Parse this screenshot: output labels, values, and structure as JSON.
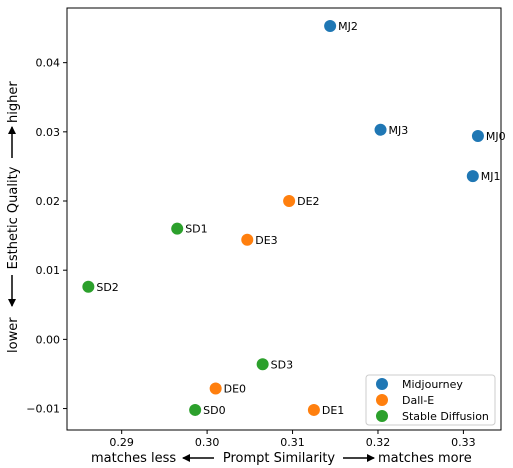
{
  "chart_data": {
    "type": "scatter",
    "xlabel": {
      "left": "matches less",
      "center": "Prompt Similarity",
      "right": "matches more"
    },
    "ylabel": {
      "low": "lower",
      "center": "Esthetic Quality",
      "high": "higher"
    },
    "xlim": [
      0.2836,
      0.3344
    ],
    "ylim": [
      -0.0131,
      0.0479
    ],
    "xticks": [
      0.29,
      0.3,
      0.31,
      0.32,
      0.33
    ],
    "xtick_labels": [
      "0.29",
      "0.30",
      "0.31",
      "0.32",
      "0.33"
    ],
    "yticks": [
      -0.01,
      0.0,
      0.01,
      0.02,
      0.03,
      0.04
    ],
    "ytick_labels": [
      "−0.01",
      "0.00",
      "0.01",
      "0.02",
      "0.03",
      "0.04"
    ],
    "grid": false,
    "legend_position": "lower-right",
    "series": [
      {
        "name": "Midjourney",
        "color": "#1f77b4",
        "points": [
          {
            "label": "MJ2",
            "x": 0.3144,
            "y": 0.0453
          },
          {
            "label": "MJ3",
            "x": 0.3203,
            "y": 0.0303
          },
          {
            "label": "MJ0",
            "x": 0.3317,
            "y": 0.0294
          },
          {
            "label": "MJ1",
            "x": 0.3311,
            "y": 0.0236
          }
        ]
      },
      {
        "name": "Dall-E",
        "color": "#ff7f0e",
        "points": [
          {
            "label": "DE2",
            "x": 0.3096,
            "y": 0.02
          },
          {
            "label": "DE3",
            "x": 0.3047,
            "y": 0.0144
          },
          {
            "label": "DE0",
            "x": 0.301,
            "y": -0.0071
          },
          {
            "label": "DE1",
            "x": 0.3125,
            "y": -0.0102
          }
        ]
      },
      {
        "name": "Stable Diffusion",
        "color": "#2ca02c",
        "points": [
          {
            "label": "SD1",
            "x": 0.2965,
            "y": 0.016
          },
          {
            "label": "SD2",
            "x": 0.2861,
            "y": 0.0076
          },
          {
            "label": "SD3",
            "x": 0.3065,
            "y": -0.0036
          },
          {
            "label": "SD0",
            "x": 0.2986,
            "y": -0.0102
          }
        ]
      }
    ]
  }
}
